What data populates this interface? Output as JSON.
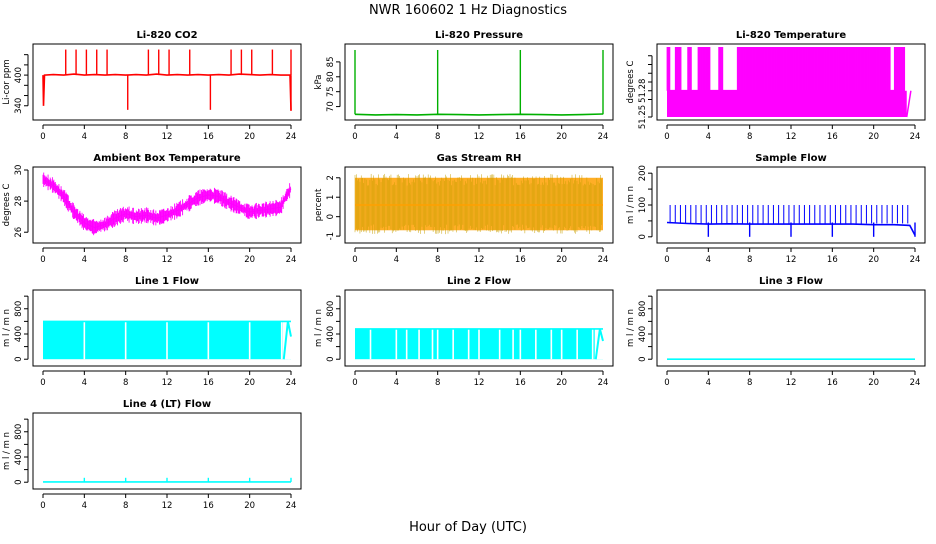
{
  "title": "NWR 160602 1 Hz Diagnostics",
  "xlabel": "Hour of Day (UTC)",
  "chart_data": [
    {
      "type": "line",
      "title": "Li-820 CO2",
      "ylabel": "Li-cor ppm",
      "color": "#ff0000",
      "xlim": [
        0,
        24
      ],
      "ylim": [
        318,
        455
      ],
      "xticks": [
        0,
        4,
        8,
        12,
        16,
        20,
        24
      ],
      "yticks": [
        340,
        360,
        380,
        400,
        420,
        440
      ],
      "ytick_labels": [
        "340",
        "",
        "",
        "400",
        "",
        ""
      ],
      "series": [
        {
          "name": "",
          "x": [
            0,
            0.05,
            0.15,
            1,
            2,
            3,
            4,
            5,
            6,
            7,
            8,
            9,
            10,
            11,
            12,
            13,
            14,
            15,
            16,
            17,
            18,
            19,
            20,
            21,
            22,
            23,
            23.9,
            24
          ],
          "y": [
            400,
            340,
            400,
            401,
            400,
            402,
            400,
            401,
            400,
            401,
            400,
            401,
            400,
            402,
            400,
            401,
            400,
            401,
            400,
            401,
            400,
            402,
            401,
            400,
            401,
            400,
            400,
            330
          ]
        }
      ],
      "spikes_up": [
        2.2,
        3.2,
        4.2,
        5.2,
        6.2,
        10.2,
        11.2,
        12.2,
        14.2,
        18.2,
        19.2,
        20.2,
        22.2,
        24
      ],
      "spikes_up_value": 450,
      "spikes_down": [
        8.2,
        16.2,
        24
      ],
      "spikes_down_value": 332
    },
    {
      "type": "line",
      "title": "Li-820 Pressure",
      "ylabel": "kPa",
      "color": "#00b000",
      "xlim": [
        0,
        24
      ],
      "ylim": [
        66.5,
        90
      ],
      "xticks": [
        0,
        4,
        8,
        12,
        16,
        20,
        24
      ],
      "yticks": [
        70,
        75,
        80,
        85
      ],
      "ytick_labels": [
        "70",
        "75",
        "80",
        "85"
      ],
      "series": [
        {
          "name": "",
          "x": [
            0,
            2,
            4,
            6,
            8,
            10,
            12,
            14,
            16,
            18,
            20,
            22,
            24
          ],
          "y": [
            67.4,
            67.2,
            67.3,
            67.2,
            67.4,
            67.3,
            67.2,
            67.3,
            67.4,
            67.3,
            67.2,
            67.3,
            67.5
          ]
        }
      ],
      "spikes_up": [
        0,
        8,
        16,
        24
      ],
      "spikes_up_value": 89
    },
    {
      "type": "line",
      "title": "Li-820 Temperature",
      "ylabel": "degrees C",
      "color": "#ff00ff",
      "xlim": [
        0,
        24
      ],
      "ylim": [
        51.25,
        51.33
      ],
      "xticks": [
        0,
        4,
        8,
        12,
        16,
        20,
        24
      ],
      "yticks": [
        51.25,
        51.27,
        51.28,
        51.29,
        51.3,
        51.31,
        51.32
      ],
      "ytick_labels": [
        "51.25",
        "",
        "51.28",
        "",
        "",
        "",
        ""
      ],
      "series": [
        {
          "name": "",
          "x": [
            0,
            23
          ],
          "y": [
            51.28,
            51.28
          ]
        }
      ],
      "band": [
        51.25,
        51.28
      ],
      "band_to": 23.2,
      "toggle_band": [
        51.28,
        51.33
      ],
      "toggle_segments": [
        [
          0,
          0.3
        ],
        [
          0.8,
          1.4
        ],
        [
          2,
          2.4
        ],
        [
          3,
          4.2
        ],
        [
          5,
          5.4
        ],
        [
          6.8,
          21.6
        ],
        [
          22,
          23
        ]
      ]
    },
    {
      "type": "line",
      "title": "Ambient Box Temperature",
      "ylabel": "degrees C",
      "color": "#ff00ff",
      "xlim": [
        0,
        24
      ],
      "ylim": [
        25.5,
        30
      ],
      "xticks": [
        0,
        4,
        8,
        12,
        16,
        20,
        24
      ],
      "yticks": [
        26,
        28,
        30
      ],
      "ytick_labels": [
        "26",
        "28",
        "30"
      ],
      "series": [
        {
          "name": "",
          "x": [
            0,
            1,
            2,
            3,
            4,
            5,
            6,
            7,
            8,
            9,
            10,
            11,
            12,
            13,
            14,
            15,
            16,
            17,
            18,
            19,
            20,
            21,
            22,
            23,
            23.5,
            24
          ],
          "y": [
            29.4,
            29.0,
            28.3,
            27.3,
            26.6,
            26.3,
            26.5,
            26.9,
            27.2,
            27.0,
            27.1,
            26.9,
            27.1,
            27.4,
            27.8,
            28.2,
            28.4,
            28.3,
            27.9,
            27.6,
            27.3,
            27.4,
            27.5,
            27.6,
            28.3,
            28.8
          ]
        }
      ],
      "noise": 0.35
    },
    {
      "type": "line",
      "title": "Gas Stream RH",
      "ylabel": "percent",
      "color": "#ffa000",
      "xlim": [
        0,
        24
      ],
      "ylim": [
        -1.2,
        2.4
      ],
      "xticks": [
        0,
        4,
        8,
        12,
        16,
        20,
        24
      ],
      "yticks": [
        -1,
        0,
        1,
        2
      ],
      "ytick_labels": [
        "-1",
        "0",
        "1",
        "2"
      ],
      "series": [
        {
          "name": "",
          "x": [
            0,
            24
          ],
          "y": [
            0.6,
            0.6
          ]
        }
      ],
      "band": [
        -0.7,
        2.0
      ]
    },
    {
      "type": "line",
      "title": "Sample Flow",
      "ylabel": "m l / m n",
      "color": "#0000ff",
      "xlim": [
        0,
        24
      ],
      "ylim": [
        -10,
        210
      ],
      "xticks": [
        0,
        4,
        8,
        12,
        16,
        20,
        24
      ],
      "yticks": [
        0,
        50,
        100,
        150,
        200
      ],
      "ytick_labels": [
        "0",
        "",
        "100",
        "",
        "200"
      ],
      "series": [
        {
          "name": "",
          "x": [
            0,
            2,
            4,
            6,
            8,
            10,
            12,
            14,
            16,
            18,
            20,
            22,
            23.5,
            24
          ],
          "y": [
            45,
            42,
            40,
            41,
            40,
            40,
            40,
            40,
            40,
            40,
            38,
            38,
            36,
            5
          ]
        }
      ],
      "spike_every": 0.5,
      "spikes_up_value": 100,
      "spikes_down": [
        4,
        8,
        12,
        16,
        20,
        24
      ],
      "spikes_down_value": 0
    },
    {
      "type": "line",
      "title": "Line 1 Flow",
      "ylabel": "m l / m n",
      "color": "#00ffff",
      "xlim": [
        0,
        24
      ],
      "ylim": [
        -60,
        1050
      ],
      "xticks": [
        0,
        4,
        8,
        12,
        16,
        20,
        24
      ],
      "yticks": [
        0,
        200,
        400,
        600,
        800,
        1000
      ],
      "ytick_labels": [
        "0",
        "",
        "400",
        "",
        "800",
        ""
      ],
      "series": [
        {
          "name": "",
          "x": [
            0,
            24
          ],
          "y": [
            600,
            600
          ]
        }
      ],
      "band": [
        0,
        600
      ],
      "gaps": [
        4,
        8,
        12,
        16,
        20,
        23.1,
        23.8
      ]
    },
    {
      "type": "line",
      "title": "Line 2 Flow",
      "ylabel": "m l / m n",
      "color": "#00ffff",
      "xlim": [
        0,
        24
      ],
      "ylim": [
        -60,
        1050
      ],
      "xticks": [
        0,
        4,
        8,
        12,
        16,
        20,
        24
      ],
      "yticks": [
        0,
        200,
        400,
        600,
        800,
        1000
      ],
      "ytick_labels": [
        "0",
        "",
        "400",
        "",
        "800",
        ""
      ],
      "series": [
        {
          "name": "",
          "x": [
            0,
            24
          ],
          "y": [
            480,
            480
          ]
        }
      ],
      "band": [
        0,
        480
      ],
      "gaps": [
        1.5,
        4,
        5,
        6.2,
        7.5,
        8,
        9.5,
        11,
        12,
        14,
        15.3,
        16,
        17.5,
        19,
        20,
        21.5,
        23
      ]
    },
    {
      "type": "line",
      "title": "Line 3 Flow",
      "ylabel": "m l / m n",
      "color": "#00ffff",
      "xlim": [
        0,
        24
      ],
      "ylim": [
        -60,
        1050
      ],
      "xticks": [
        0,
        4,
        8,
        12,
        16,
        20,
        24
      ],
      "yticks": [
        0,
        200,
        400,
        600,
        800,
        1000
      ],
      "ytick_labels": [
        "0",
        "",
        "400",
        "",
        "800",
        ""
      ],
      "series": [
        {
          "name": "",
          "x": [
            0,
            24
          ],
          "y": [
            0,
            0
          ]
        }
      ]
    },
    {
      "type": "line",
      "title": "Line 4 (LT) Flow",
      "ylabel": "m l / m n",
      "color": "#00ffff",
      "xlim": [
        0,
        24
      ],
      "ylim": [
        -60,
        1050
      ],
      "xticks": [
        0,
        4,
        8,
        12,
        16,
        20,
        24
      ],
      "yticks": [
        0,
        200,
        400,
        600,
        800,
        1000
      ],
      "ytick_labels": [
        "0",
        "",
        "400",
        "",
        "800",
        ""
      ],
      "series": [
        {
          "name": "",
          "x": [
            0,
            24
          ],
          "y": [
            5,
            5
          ]
        }
      ],
      "spikes_up": [
        4,
        8,
        12,
        16,
        20,
        24
      ],
      "spikes_up_value": 70
    }
  ]
}
